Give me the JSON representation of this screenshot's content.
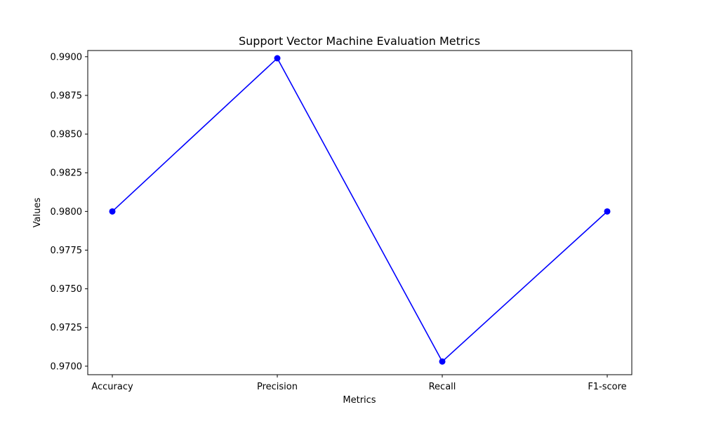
{
  "chart_data": {
    "type": "line",
    "title": "Support Vector Machine Evaluation Metrics",
    "xlabel": "Metrics",
    "ylabel": "Values",
    "categories": [
      "Accuracy",
      "Precision",
      "Recall",
      "F1-score"
    ],
    "series": [
      {
        "values": [
          0.98,
          0.9899,
          0.9703,
          0.98
        ],
        "color": "#0000ff",
        "marker": "circle"
      }
    ],
    "ylim": [
      0.96945,
      0.9904
    ],
    "yticks": [
      0.97,
      0.9725,
      0.975,
      0.9775,
      0.98,
      0.9825,
      0.985,
      0.9875,
      0.99
    ],
    "ytick_labels": [
      "0.9700",
      "0.9725",
      "0.9750",
      "0.9775",
      "0.9800",
      "0.9825",
      "0.9850",
      "0.9875",
      "0.9900"
    ],
    "grid": false,
    "legend": "none"
  }
}
